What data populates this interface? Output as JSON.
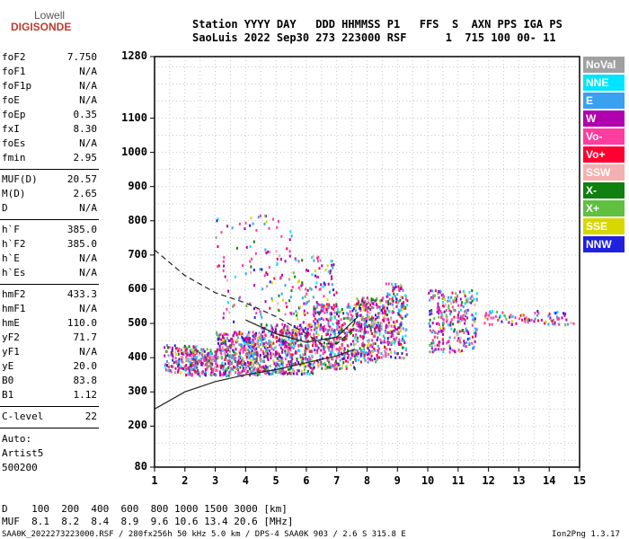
{
  "logo": {
    "top": "Lowell",
    "bottom": "DIGISONDE"
  },
  "header": {
    "line1": "Station YYYY DAY   DDD HHMMSS P1   FFS  S  AXN PPS IGA PS",
    "line2": "SaoLuis 2022 Sep30 273 223000 RSF      1  715 100 00- 11"
  },
  "params": [
    {
      "k": "foF2",
      "v": "7.750"
    },
    {
      "k": "foF1",
      "v": "N/A"
    },
    {
      "k": "foF1p",
      "v": "N/A"
    },
    {
      "k": "foE",
      "v": "N/A"
    },
    {
      "k": "foEp",
      "v": "0.35"
    },
    {
      "k": "fxI",
      "v": "8.30"
    },
    {
      "k": "foEs",
      "v": "N/A"
    },
    {
      "k": "fmin",
      "v": "2.95"
    },
    {
      "k": "MUF(D)",
      "v": "20.57"
    },
    {
      "k": "M(D)",
      "v": "2.65"
    },
    {
      "k": "D",
      "v": "N/A"
    },
    {
      "k": "h`F",
      "v": "385.0"
    },
    {
      "k": "h`F2",
      "v": "385.0"
    },
    {
      "k": "h`E",
      "v": "N/A"
    },
    {
      "k": "h`Es",
      "v": "N/A"
    },
    {
      "k": "hmF2",
      "v": "433.3"
    },
    {
      "k": "hmF1",
      "v": "N/A"
    },
    {
      "k": "hmE",
      "v": "110.0"
    },
    {
      "k": "yF2",
      "v": "71.7"
    },
    {
      "k": "yF1",
      "v": "N/A"
    },
    {
      "k": "yE",
      "v": "20.0"
    },
    {
      "k": "B0",
      "v": "83.8"
    },
    {
      "k": "B1",
      "v": "1.12"
    },
    {
      "k": "C-level",
      "v": "22"
    }
  ],
  "autoscaling": {
    "l1": "Auto:",
    "l2": "Artist5",
    "l3": "500200"
  },
  "legend": [
    {
      "label": "NoVal",
      "color": "#a0a0a0"
    },
    {
      "label": "NNE",
      "color": "#00e5ff"
    },
    {
      "label": "E",
      "color": "#3aa0f0"
    },
    {
      "label": "W",
      "color": "#b000b0"
    },
    {
      "label": "Vo-",
      "color": "#ff3ca0"
    },
    {
      "label": "Vo+",
      "color": "#ff0030"
    },
    {
      "label": "SSW",
      "color": "#f4b0b0"
    },
    {
      "label": "X-",
      "color": "#108010"
    },
    {
      "label": "X+",
      "color": "#60c040"
    },
    {
      "label": "SSE",
      "color": "#d8d800"
    },
    {
      "label": "NNW",
      "color": "#2020e0"
    }
  ],
  "footer": {
    "d_row": "D    100  200  400  600  800 1000 1500 3000 [km]",
    "muf_row": "MUF  8.1  8.2  8.4  8.9  9.6 10.6 13.4 20.6 [MHz]",
    "info": "SAA0K_2022273223000.RSF / 280fx256h 50 kHz 5.0 km / DPS-4 SAA0K 903 / 2.6 S 315.8 E",
    "version": "Ion2Png 1.3.17"
  },
  "chart_data": {
    "type": "scatter",
    "xlim": [
      1,
      15
    ],
    "ylim": [
      80,
      1280
    ],
    "x_ticks": [
      1,
      2,
      3,
      4,
      5,
      6,
      7,
      8,
      9,
      10,
      11,
      12,
      13,
      14,
      15
    ],
    "y_ticks": [
      80,
      200,
      300,
      400,
      500,
      600,
      700,
      800,
      900,
      1000,
      1100,
      1280
    ],
    "clusters": [
      {
        "x": [
          1.3,
          2.4
        ],
        "y": [
          360,
          440
        ],
        "n": 140
      },
      {
        "x": [
          2.0,
          3.0
        ],
        "y": [
          350,
          430
        ],
        "n": 180
      },
      {
        "x": [
          3.0,
          4.5
        ],
        "y": [
          350,
          480
        ],
        "n": 420
      },
      {
        "x": [
          4.5,
          6.2
        ],
        "y": [
          355,
          500
        ],
        "n": 450
      },
      {
        "x": [
          6.2,
          7.6
        ],
        "y": [
          370,
          560
        ],
        "n": 380
      },
      {
        "x": [
          7.6,
          8.6
        ],
        "y": [
          390,
          580
        ],
        "n": 300
      },
      {
        "x": [
          8.6,
          9.3
        ],
        "y": [
          400,
          620
        ],
        "n": 180
      },
      {
        "x": [
          10.0,
          11.6
        ],
        "y": [
          420,
          600
        ],
        "n": 260
      },
      {
        "x": [
          11.8,
          14.8
        ],
        "y": [
          500,
          540
        ],
        "n": 90
      },
      {
        "x": [
          3.0,
          5.5
        ],
        "y": [
          500,
          820
        ],
        "n": 120
      },
      {
        "x": [
          5.5,
          7.0
        ],
        "y": [
          500,
          700
        ],
        "n": 100
      }
    ],
    "curves": [
      {
        "name": "upper",
        "x": [
          1.0,
          2.0,
          3.0,
          4.0,
          5.0,
          6.0,
          6.5,
          7.0,
          7.5,
          7.8
        ],
        "y": [
          715,
          640,
          590,
          560,
          520,
          470,
          440,
          440,
          480,
          560
        ],
        "style": "dashed"
      },
      {
        "name": "lower",
        "x": [
          1.0,
          2.0,
          3.0,
          4.0,
          5.0,
          6.0,
          7.0,
          7.6
        ],
        "y": [
          250,
          300,
          330,
          350,
          365,
          385,
          405,
          425
        ],
        "style": "solid"
      },
      {
        "name": "inner",
        "x": [
          4.0,
          5.0,
          6.0,
          7.0,
          7.7
        ],
        "y": [
          510,
          470,
          445,
          460,
          520
        ],
        "style": "solid"
      }
    ]
  }
}
